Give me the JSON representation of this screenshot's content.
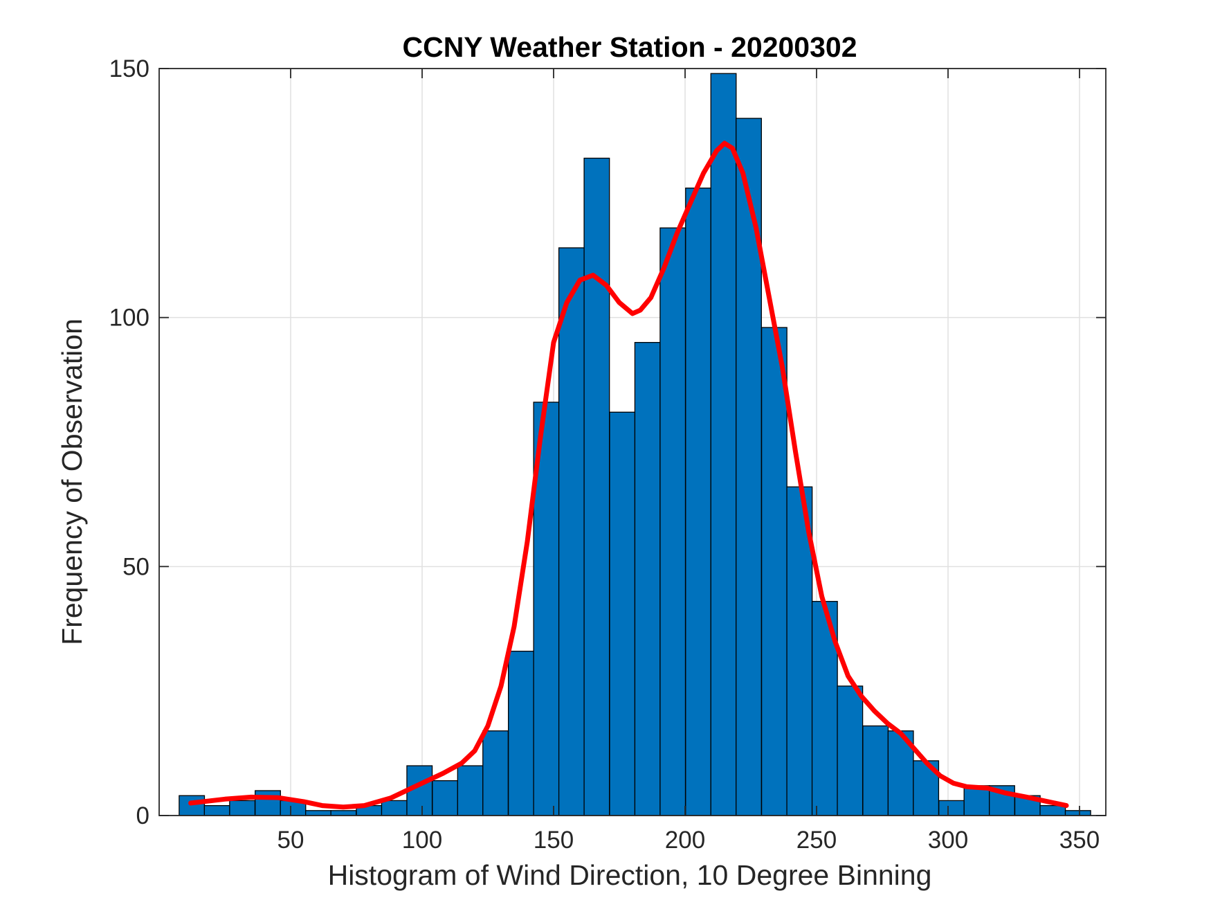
{
  "chart_data": {
    "type": "bar",
    "title": "CCNY Weather Station - 20200302",
    "xlabel": "Histogram of Wind Direction, 10 Degree Binning",
    "ylabel": "Frequency of Observation",
    "xlim": [
      0,
      360
    ],
    "ylim": [
      0,
      150
    ],
    "x_ticks": [
      50,
      100,
      150,
      200,
      250,
      300,
      350
    ],
    "y_ticks": [
      0,
      50,
      100,
      150
    ],
    "grid": true,
    "bin_width": 9.63,
    "bins": [
      {
        "start": 7.6,
        "value": 4
      },
      {
        "start": 17.2,
        "value": 2
      },
      {
        "start": 26.8,
        "value": 3
      },
      {
        "start": 36.5,
        "value": 5
      },
      {
        "start": 46.1,
        "value": 3
      },
      {
        "start": 55.7,
        "value": 1
      },
      {
        "start": 65.3,
        "value": 1
      },
      {
        "start": 75.0,
        "value": 2
      },
      {
        "start": 84.6,
        "value": 3
      },
      {
        "start": 94.2,
        "value": 10
      },
      {
        "start": 103.9,
        "value": 7
      },
      {
        "start": 113.5,
        "value": 10
      },
      {
        "start": 123.1,
        "value": 17
      },
      {
        "start": 132.8,
        "value": 33
      },
      {
        "start": 142.4,
        "value": 83
      },
      {
        "start": 152.0,
        "value": 114
      },
      {
        "start": 161.6,
        "value": 132
      },
      {
        "start": 171.3,
        "value": 81
      },
      {
        "start": 180.9,
        "value": 95
      },
      {
        "start": 190.5,
        "value": 118
      },
      {
        "start": 200.2,
        "value": 126
      },
      {
        "start": 209.8,
        "value": 149
      },
      {
        "start": 219.4,
        "value": 140
      },
      {
        "start": 229.1,
        "value": 98
      },
      {
        "start": 238.7,
        "value": 66
      },
      {
        "start": 248.3,
        "value": 43
      },
      {
        "start": 257.9,
        "value": 26
      },
      {
        "start": 267.6,
        "value": 18
      },
      {
        "start": 277.2,
        "value": 17
      },
      {
        "start": 286.8,
        "value": 11
      },
      {
        "start": 296.5,
        "value": 3
      },
      {
        "start": 306.1,
        "value": 6
      },
      {
        "start": 315.7,
        "value": 6
      },
      {
        "start": 325.4,
        "value": 4
      },
      {
        "start": 335.0,
        "value": 2
      },
      {
        "start": 344.6,
        "value": 1
      }
    ],
    "series": [
      {
        "type": "line",
        "color": "#ff0000",
        "points": [
          [
            12,
            2.5
          ],
          [
            25,
            3.3
          ],
          [
            35,
            3.7
          ],
          [
            45,
            3.6
          ],
          [
            55,
            2.8
          ],
          [
            62,
            2.0
          ],
          [
            70,
            1.7
          ],
          [
            78,
            2.0
          ],
          [
            88,
            3.5
          ],
          [
            98,
            6.0
          ],
          [
            108,
            8.5
          ],
          [
            115,
            10.5
          ],
          [
            120,
            13.0
          ],
          [
            125,
            18.0
          ],
          [
            130,
            26.0
          ],
          [
            135,
            38.0
          ],
          [
            140,
            55.0
          ],
          [
            145,
            76.0
          ],
          [
            150,
            95.0
          ],
          [
            155,
            103.0
          ],
          [
            160,
            107.5
          ],
          [
            165,
            108.5
          ],
          [
            170,
            106.5
          ],
          [
            175,
            103.0
          ],
          [
            180,
            100.8
          ],
          [
            183,
            101.5
          ],
          [
            187,
            104.0
          ],
          [
            192,
            110.0
          ],
          [
            197,
            117.0
          ],
          [
            202,
            123.0
          ],
          [
            207,
            129.0
          ],
          [
            212,
            133.5
          ],
          [
            215,
            135.0
          ],
          [
            218,
            134.0
          ],
          [
            222,
            129.0
          ],
          [
            227,
            118.0
          ],
          [
            232,
            104.0
          ],
          [
            237,
            90.0
          ],
          [
            242,
            73.0
          ],
          [
            247,
            57.0
          ],
          [
            252,
            44.0
          ],
          [
            257,
            35.0
          ],
          [
            262,
            28.0
          ],
          [
            267,
            24.0
          ],
          [
            272,
            21.0
          ],
          [
            277,
            18.5
          ],
          [
            282,
            16.5
          ],
          [
            287,
            13.5
          ],
          [
            292,
            10.5
          ],
          [
            297,
            8.0
          ],
          [
            302,
            6.5
          ],
          [
            307,
            5.8
          ],
          [
            315,
            5.5
          ],
          [
            322,
            4.5
          ],
          [
            330,
            3.7
          ],
          [
            338,
            2.8
          ],
          [
            345,
            2.0
          ]
        ]
      }
    ],
    "colors": {
      "bar_fill": "#0072bd",
      "bar_edge": "#000000",
      "curve": "#ff0000",
      "grid": "#e0e0e0",
      "axis": "#262626"
    }
  }
}
